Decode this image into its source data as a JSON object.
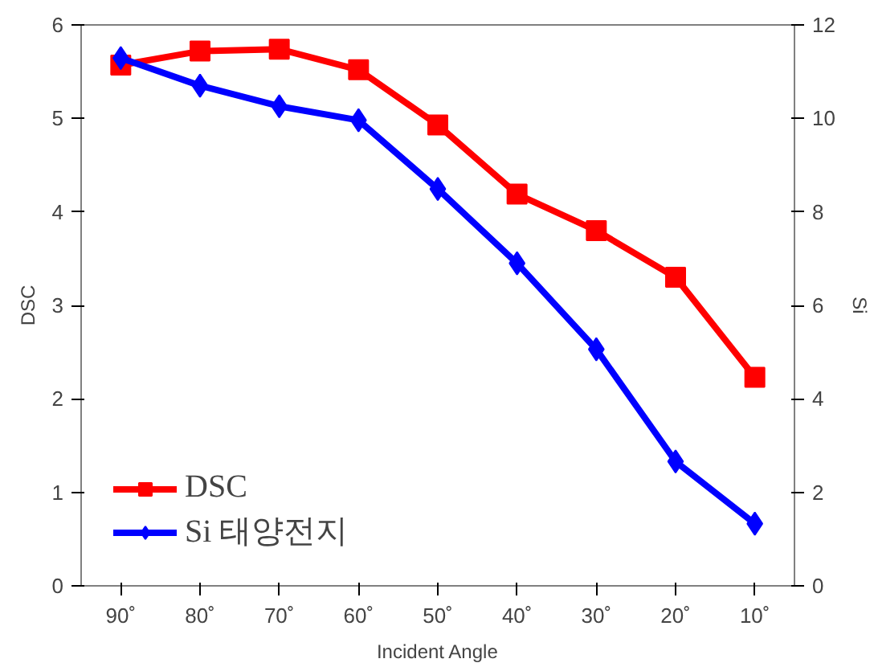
{
  "chart_data": {
    "type": "line",
    "xlabel": "Incident Angle",
    "ylabel": "DSC",
    "y2label": "Si",
    "categories": [
      "90˚",
      "80˚",
      "70˚",
      "60˚",
      "50˚",
      "40˚",
      "30˚",
      "20˚",
      "10˚"
    ],
    "series": [
      {
        "name": "DSC",
        "color": "#ff0000",
        "marker": "square",
        "values": [
          5.57,
          5.72,
          5.74,
          5.52,
          4.93,
          4.19,
          3.8,
          3.3,
          2.23
        ]
      },
      {
        "name": "Si 태양전지",
        "color": "#0000ff",
        "marker": "diamond",
        "axis": "y2",
        "values": [
          11.29,
          10.7,
          10.26,
          9.96,
          8.49,
          6.9,
          5.06,
          2.66,
          1.33
        ]
      }
    ],
    "ylim": [
      0,
      6
    ],
    "yticks": [
      0,
      1,
      2,
      3,
      4,
      5,
      6
    ],
    "y2lim": [
      0,
      12
    ],
    "y2ticks": [
      0,
      2,
      4,
      6,
      8,
      10,
      12
    ],
    "grid": false,
    "legend": "bottom left",
    "line_style": "solid"
  }
}
